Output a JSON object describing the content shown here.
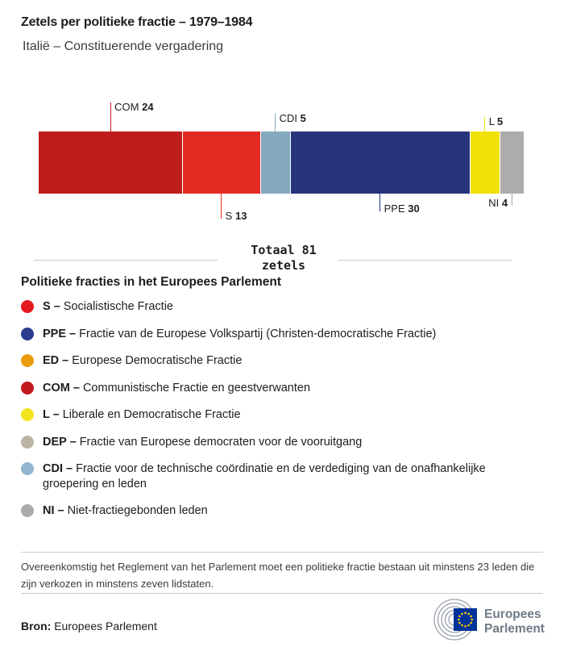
{
  "header": {
    "title": "Zetels per politieke fractie – 1979–1984",
    "subtitle": "Italië – Constituerende vergadering"
  },
  "chart_data": {
    "type": "bar",
    "variant": "horizontal-stacked",
    "title": "Zetels per politieke fractie – 1979–1984",
    "subtitle": "Italië – Constituerende vergadering",
    "total": {
      "label": "Totaal",
      "value": 81,
      "unit": "zetels"
    },
    "segments": [
      {
        "code": "COM",
        "seats": 24,
        "color": "#BF1C1C",
        "label_pos": "above",
        "line_len": 36,
        "label_side": "right"
      },
      {
        "code": "S",
        "seats": 13,
        "color": "#E32B24",
        "label_pos": "below",
        "line_len": 31,
        "label_side": "right"
      },
      {
        "code": "CDI",
        "seats": 5,
        "color": "#84A9BF",
        "label_pos": "above",
        "line_len": 22,
        "label_side": "right"
      },
      {
        "code": "PPE",
        "seats": 30,
        "color": "#27357C",
        "label_pos": "below",
        "line_len": 22,
        "label_side": "right"
      },
      {
        "code": "L",
        "seats": 5,
        "color": "#EFE007",
        "label_pos": "above",
        "line_len": 18,
        "label_side": "right"
      },
      {
        "code": "NI",
        "seats": 4,
        "color": "#ACACAC",
        "label_pos": "below",
        "line_len": 15,
        "label_side": "left"
      }
    ]
  },
  "legend": {
    "heading": "Politieke fracties in het Europees Parlement",
    "items": [
      {
        "code": "S",
        "name": "Socialistische Fractie",
        "color": "#E31B1F"
      },
      {
        "code": "PPE",
        "name": "Fractie van de Europese Volkspartij (Christen-democratische Fractie)",
        "color": "#2B3B8D"
      },
      {
        "code": "ED",
        "name": "Europese Democratische Fractie",
        "color": "#E99D0E"
      },
      {
        "code": "COM",
        "name": "Communistische Fractie en geestverwanten",
        "color": "#C31A20"
      },
      {
        "code": "L",
        "name": "Liberale en Democratische Fractie",
        "color": "#F2E41F"
      },
      {
        "code": "DEP",
        "name": "Fractie van Europese democraten voor de vooruitgang",
        "color": "#BDB4A5"
      },
      {
        "code": "CDI",
        "name": "Fractie voor de technische coördinatie en de verdediging van de onafhankelijke groepering en leden",
        "color": "#92B7CF"
      },
      {
        "code": "NI",
        "name": "Niet-fractiegebonden leden",
        "color": "#ABABAB"
      }
    ]
  },
  "footer": {
    "note": "Overeenkomstig het Reglement van het Parlement moet een politieke fractie bestaan uit minstens 23 leden die zijn verkozen in minstens zeven lidstaten.",
    "source_label": "Bron:",
    "source": "Europees Parlement",
    "logo_line1": "Europees",
    "logo_line2": "Parlement",
    "logo_colors": {
      "flag_blue": "#003399",
      "star_yellow": "#FFCC00",
      "arc_gray": "#9AA1A9",
      "text_gray": "#6F7B87"
    }
  }
}
